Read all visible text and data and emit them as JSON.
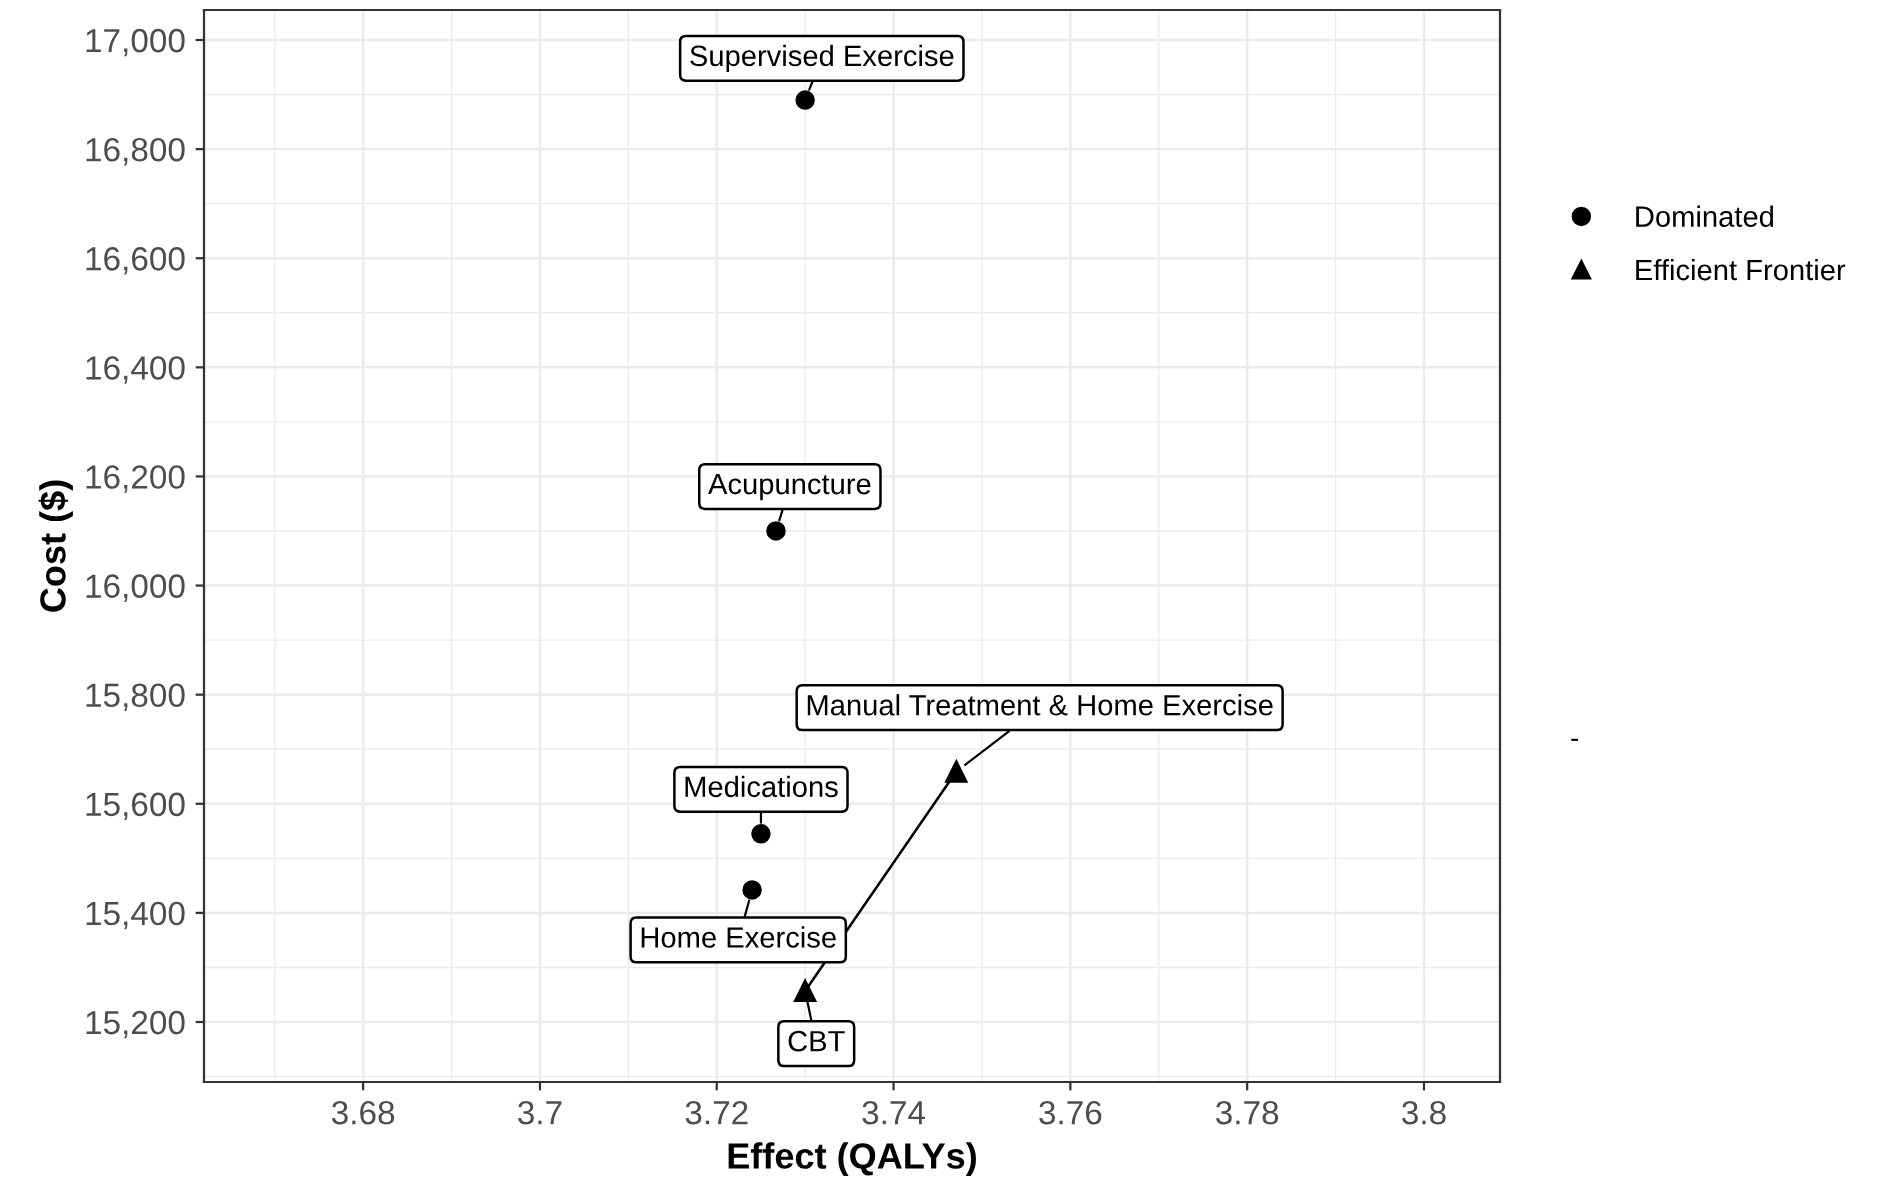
{
  "chart_data": {
    "type": "scatter",
    "xlabel": "Effect (QALYs)",
    "ylabel": "Cost ($)",
    "xlim": [
      3.662,
      3.8086
    ],
    "ylim": [
      15090,
      17055
    ],
    "xticks": [
      3.68,
      3.7,
      3.72,
      3.74,
      3.76,
      3.78,
      3.8
    ],
    "yticks": [
      {
        "value": 15200,
        "label": "15,200"
      },
      {
        "value": 15400,
        "label": "15,400"
      },
      {
        "value": 15600,
        "label": "15,600"
      },
      {
        "value": 15800,
        "label": "15,800"
      },
      {
        "value": 16000,
        "label": "16,000"
      },
      {
        "value": 16200,
        "label": "16,200"
      },
      {
        "value": 16400,
        "label": "16,400"
      },
      {
        "value": 16600,
        "label": "16,600"
      },
      {
        "value": 16800,
        "label": "16,800"
      },
      {
        "value": 17000,
        "label": "17,000"
      }
    ],
    "grid": true,
    "legend": "right",
    "series": [
      {
        "name": "Dominated",
        "marker": "circle",
        "color": "#000000",
        "x": [
          3.73,
          3.7267,
          3.725,
          3.724
        ],
        "values": [
          16890,
          16100,
          15545,
          15442
        ]
      },
      {
        "name": "Efficient Frontier",
        "type": "line",
        "marker": "triangle",
        "color": "#000000",
        "x": [
          3.73,
          3.7471
        ],
        "values": [
          15257,
          15659
        ]
      }
    ],
    "annotations": [
      {
        "text": "Supervised Exercise",
        "x": 3.73,
        "y": 16890
      },
      {
        "text": "Acupuncture",
        "x": 3.7267,
        "y": 16100
      },
      {
        "text": "Medications",
        "x": 3.725,
        "y": 15545
      },
      {
        "text": "Home Exercise",
        "x": 3.724,
        "y": 15442
      },
      {
        "text": "CBT",
        "x": 3.73,
        "y": 15257
      },
      {
        "text": "Manual Treatment & Home Exercise",
        "x": 3.7471,
        "y": 15659
      },
      "-"
    ]
  }
}
